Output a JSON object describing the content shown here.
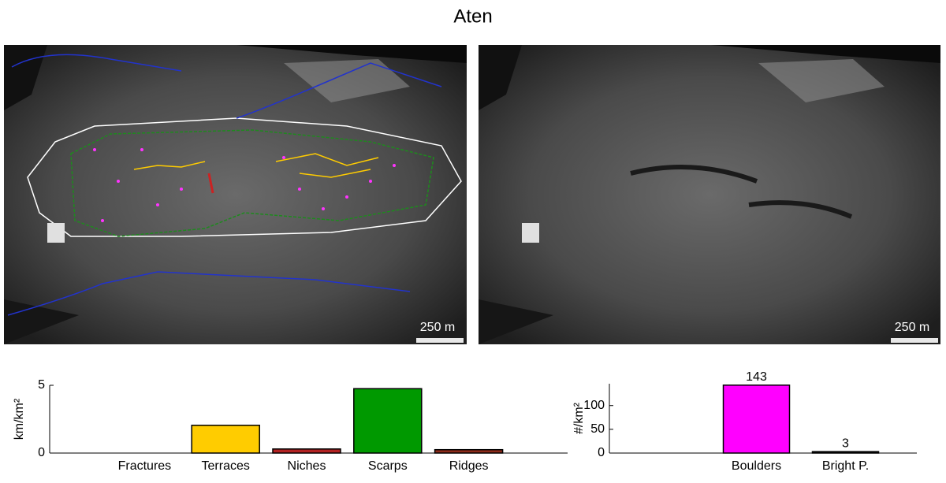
{
  "title": "Aten",
  "panels": [
    {
      "scale_label": "250 m"
    },
    {
      "scale_label": "250 m"
    }
  ],
  "chart_data": [
    {
      "type": "bar",
      "ylabel": "km/km²",
      "categories": [
        "Fractures",
        "Terraces",
        "Niches",
        "Scarps",
        "Ridges"
      ],
      "values": [
        0,
        2.05,
        0.3,
        4.75,
        0.25
      ],
      "colors": [
        "#000000",
        "#ffcc00",
        "#b22222",
        "#009900",
        "#8b2a1a"
      ],
      "ylim": [
        0,
        5
      ],
      "yticks": [
        0,
        5
      ]
    },
    {
      "type": "bar",
      "ylabel": "#/km²",
      "categories": [
        "Boulders",
        "Bright P."
      ],
      "values": [
        143,
        3
      ],
      "colors": [
        "#ff00ff",
        "#111111"
      ],
      "ylim": [
        0,
        146
      ],
      "yticks": [
        0,
        50,
        100
      ]
    }
  ]
}
